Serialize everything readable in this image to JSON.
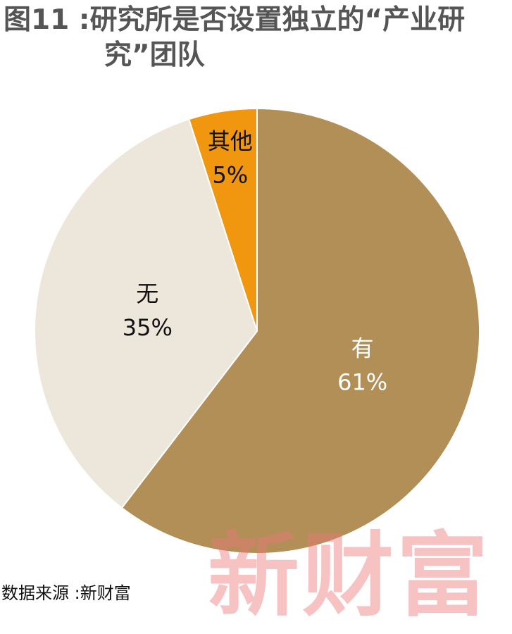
{
  "chart_data": {
    "type": "pie",
    "title": "图11 :研究所是否设置独立的“产业研究”团队",
    "categories": [
      "有",
      "无",
      "其他"
    ],
    "values": [
      61,
      35,
      5
    ],
    "value_labels": [
      "61%",
      "35%",
      "5%"
    ],
    "colors": [
      "#b38f58",
      "#ede6da",
      "#f0960f"
    ],
    "label_colors": [
      "#ffffff",
      "#111111",
      "#111111"
    ],
    "source": "数据来源 :新财富",
    "watermark": "新财富"
  }
}
